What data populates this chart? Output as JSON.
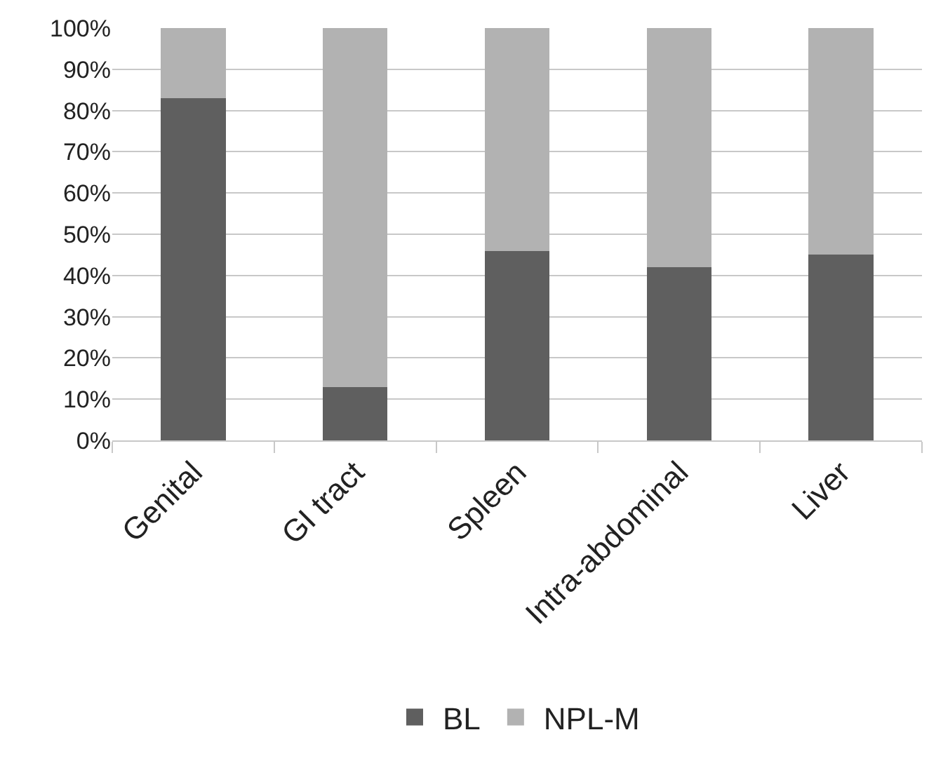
{
  "chart_data": {
    "type": "bar",
    "stacked": true,
    "categories": [
      "Genital",
      "GI tract",
      "Spleen",
      "Intra-abdominal",
      "Liver"
    ],
    "series": [
      {
        "name": "BL",
        "color": "#5f5f5f",
        "values": [
          83,
          13,
          46,
          42,
          45
        ]
      },
      {
        "name": "NPL-M",
        "color": "#b2b2b2",
        "values": [
          17,
          87,
          54,
          58,
          55
        ]
      }
    ],
    "ylim": [
      0,
      100
    ],
    "yticks": [
      {
        "value": 0,
        "label": "0%"
      },
      {
        "value": 10,
        "label": "10%"
      },
      {
        "value": 20,
        "label": "20%"
      },
      {
        "value": 30,
        "label": "30%"
      },
      {
        "value": 40,
        "label": "40%"
      },
      {
        "value": 50,
        "label": "50%"
      },
      {
        "value": 60,
        "label": "60%"
      },
      {
        "value": 70,
        "label": "70%"
      },
      {
        "value": 80,
        "label": "80%"
      },
      {
        "value": 90,
        "label": "90%"
      },
      {
        "value": 100,
        "label": "100%"
      }
    ],
    "grid": "y",
    "legend": "bottom"
  }
}
